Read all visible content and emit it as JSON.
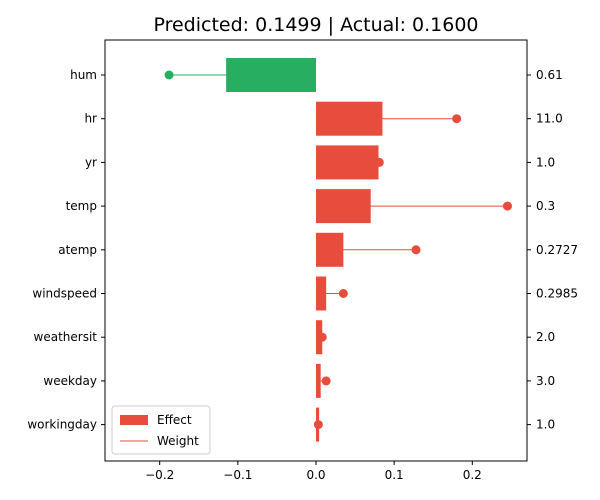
{
  "chart_data": {
    "type": "bar",
    "orientation": "horizontal",
    "title": "Predicted: 0.1499 | Actual: 0.1600",
    "xlabel": "",
    "ylabel": "",
    "xlim": [
      -0.27,
      0.27
    ],
    "xticks": [
      -0.2,
      -0.1,
      0.0,
      0.1,
      0.2
    ],
    "xtick_labels": [
      "−0.2",
      "−0.1",
      "0.0",
      "0.1",
      "0.2"
    ],
    "grid": false,
    "legend_position": "bottom-left",
    "categories": [
      "hum",
      "hr",
      "yr",
      "temp",
      "atemp",
      "windspeed",
      "weathersit",
      "weekday",
      "workingday"
    ],
    "feature_values": [
      "0.61",
      "11.0",
      "1.0",
      "0.3",
      "0.2727",
      "0.2985",
      "2.0",
      "3.0",
      "1.0"
    ],
    "series": [
      {
        "name": "Effect",
        "values": [
          -0.115,
          0.085,
          0.08,
          0.07,
          0.035,
          0.013,
          0.008,
          0.006,
          0.004
        ]
      },
      {
        "name": "Weight",
        "values": [
          -0.188,
          0.18,
          0.081,
          0.245,
          0.128,
          0.035,
          0.008,
          0.013,
          0.003
        ]
      }
    ],
    "colors": {
      "positive": "#e74c3c",
      "negative": "#27ae60"
    }
  }
}
